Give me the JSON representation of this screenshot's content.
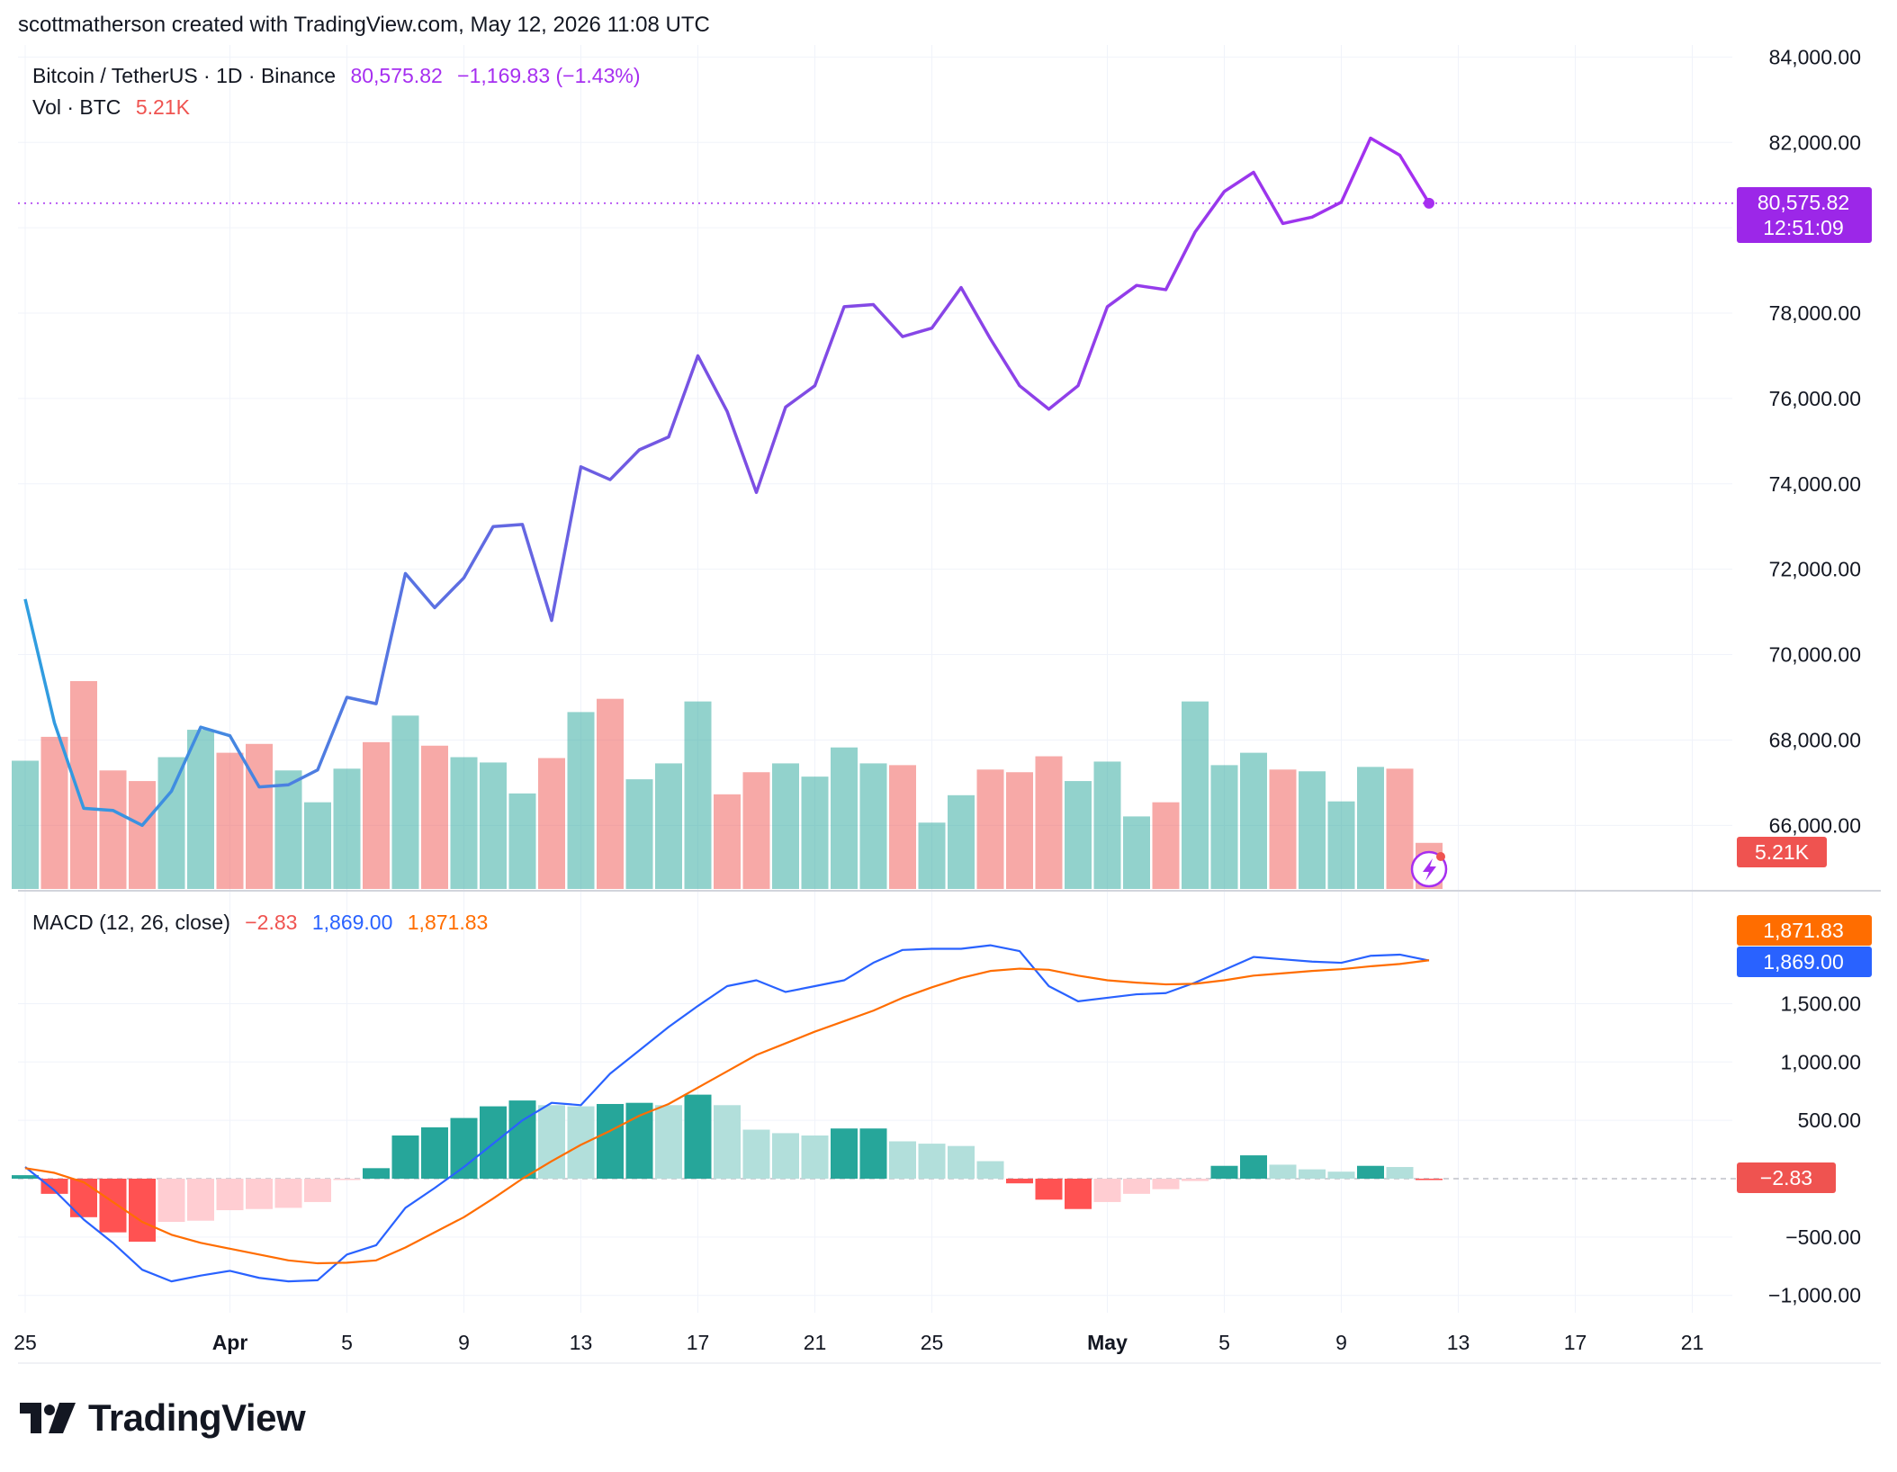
{
  "header": {
    "credit": "scottmatherson created with TradingView.com, May 12, 2026 11:08 UTC"
  },
  "legend": {
    "symbol": "Bitcoin / TetherUS · 1D · Binance",
    "price": "80,575.82",
    "change": "−1,169.83 (−1.43%)",
    "vol_label": "Vol · BTC",
    "vol_value": "5.21K",
    "macd_label": "MACD (12, 26, close)",
    "macd_hist": "−2.83",
    "macd_line": "1,869.00",
    "macd_signal": "1,871.83"
  },
  "badges": {
    "price": "80,575.82",
    "countdown": "12:51:09",
    "volume": "5.21K",
    "signal": "1,871.83",
    "macd": "1,869.00",
    "hist": "−2.83"
  },
  "colors": {
    "up": "#26a69a",
    "down": "#ef5350",
    "price_start": "#2e9fe0",
    "price_end": "#a62ef0",
    "macd": "#2962ff",
    "signal": "#ff6d00",
    "price_badge": "#9c27e8"
  },
  "brand": {
    "name": "TradingView"
  },
  "chart_data": [
    {
      "type": "line",
      "name": "BTCUSDT price",
      "x": [
        "Mar 25",
        "Mar 26",
        "Mar 27",
        "Mar 28",
        "Mar 29",
        "Mar 30",
        "Mar 31",
        "Apr 1",
        "Apr 2",
        "Apr 3",
        "Apr 4",
        "Apr 5",
        "Apr 6",
        "Apr 7",
        "Apr 8",
        "Apr 9",
        "Apr 10",
        "Apr 11",
        "Apr 12",
        "Apr 13",
        "Apr 14",
        "Apr 15",
        "Apr 16",
        "Apr 17",
        "Apr 18",
        "Apr 19",
        "Apr 20",
        "Apr 21",
        "Apr 22",
        "Apr 23",
        "Apr 24",
        "Apr 25",
        "Apr 26",
        "Apr 27",
        "Apr 28",
        "Apr 29",
        "Apr 30",
        "May 1",
        "May 2",
        "May 3",
        "May 4",
        "May 5",
        "May 6",
        "May 7",
        "May 8",
        "May 9",
        "May 10",
        "May 11",
        "May 12"
      ],
      "values": [
        71300,
        68400,
        66400,
        66350,
        66000,
        66800,
        68300,
        68100,
        66900,
        66950,
        67300,
        69000,
        68850,
        71900,
        71100,
        71800,
        73000,
        73050,
        70800,
        74400,
        74100,
        74800,
        75100,
        77000,
        75700,
        73800,
        75800,
        76300,
        78150,
        78200,
        77450,
        77650,
        78600,
        77400,
        76300,
        75750,
        76300,
        78150,
        78650,
        78550,
        79900,
        80850,
        81300,
        80100,
        80250,
        80600,
        82100,
        81700,
        80575.82
      ],
      "ylim": [
        64000,
        84000
      ],
      "yticks": [
        66000,
        68000,
        70000,
        72000,
        74000,
        76000,
        78000,
        80000,
        82000,
        84000
      ],
      "current": 80575.82
    },
    {
      "type": "bar",
      "name": "Vol · BTC",
      "x": [
        "Mar 25",
        "Mar 26",
        "Mar 27",
        "Mar 28",
        "Mar 29",
        "Mar 30",
        "Mar 31",
        "Apr 1",
        "Apr 2",
        "Apr 3",
        "Apr 4",
        "Apr 5",
        "Apr 6",
        "Apr 7",
        "Apr 8",
        "Apr 9",
        "Apr 10",
        "Apr 11",
        "Apr 12",
        "Apr 13",
        "Apr 14",
        "Apr 15",
        "Apr 16",
        "Apr 17",
        "Apr 18",
        "Apr 19",
        "Apr 20",
        "Apr 21",
        "Apr 22",
        "Apr 23",
        "Apr 24",
        "Apr 25",
        "Apr 26",
        "Apr 27",
        "Apr 28",
        "Apr 29",
        "Apr 30",
        "May 1",
        "May 2",
        "May 3",
        "May 4",
        "May 5",
        "May 6",
        "May 7",
        "May 8",
        "May 9",
        "May 10",
        "May 11",
        "May 12"
      ],
      "values": [
        14.5,
        17.2,
        23.5,
        13.4,
        12.2,
        14.9,
        18.0,
        15.4,
        16.4,
        13.4,
        9.8,
        13.6,
        16.6,
        19.6,
        16.2,
        14.9,
        14.3,
        10.8,
        14.8,
        20.0,
        21.5,
        12.4,
        14.2,
        21.2,
        10.7,
        13.2,
        14.2,
        12.7,
        16.0,
        14.2,
        14.0,
        7.5,
        10.6,
        13.5,
        13.2,
        15.0,
        12.2,
        14.4,
        8.2,
        9.8,
        21.2,
        14.0,
        15.4,
        13.5,
        13.3,
        9.9,
        13.8,
        13.6,
        5.21
      ],
      "direction": [
        "up",
        "down",
        "down",
        "down",
        "down",
        "up",
        "up",
        "down",
        "down",
        "up",
        "up",
        "up",
        "down",
        "up",
        "down",
        "up",
        "up",
        "up",
        "down",
        "up",
        "down",
        "up",
        "up",
        "up",
        "down",
        "down",
        "up",
        "up",
        "up",
        "up",
        "down",
        "up",
        "up",
        "down",
        "down",
        "down",
        "up",
        "up",
        "up",
        "down",
        "up",
        "up",
        "up",
        "down",
        "up",
        "up",
        "up",
        "down",
        "down"
      ],
      "current": "5.21K"
    },
    {
      "type": "line",
      "name": "MACD (12, 26, close)",
      "x": [
        "Mar 25",
        "Mar 26",
        "Mar 27",
        "Mar 28",
        "Mar 29",
        "Mar 30",
        "Mar 31",
        "Apr 1",
        "Apr 2",
        "Apr 3",
        "Apr 4",
        "Apr 5",
        "Apr 6",
        "Apr 7",
        "Apr 8",
        "Apr 9",
        "Apr 10",
        "Apr 11",
        "Apr 12",
        "Apr 13",
        "Apr 14",
        "Apr 15",
        "Apr 16",
        "Apr 17",
        "Apr 18",
        "Apr 19",
        "Apr 20",
        "Apr 21",
        "Apr 22",
        "Apr 23",
        "Apr 24",
        "Apr 25",
        "Apr 26",
        "Apr 27",
        "Apr 28",
        "Apr 29",
        "Apr 30",
        "May 1",
        "May 2",
        "May 3",
        "May 4",
        "May 5",
        "May 6",
        "May 7",
        "May 8",
        "May 9",
        "May 10",
        "May 11",
        "May 12"
      ],
      "series": [
        {
          "name": "MACD",
          "values": [
            100,
            -100,
            -350,
            -550,
            -780,
            -880,
            -830,
            -790,
            -850,
            -880,
            -870,
            -650,
            -570,
            -250,
            -80,
            100,
            300,
            500,
            650,
            630,
            900,
            1100,
            1300,
            1480,
            1650,
            1700,
            1600,
            1650,
            1700,
            1850,
            1960,
            1970,
            1970,
            2000,
            1950,
            1650,
            1520,
            1550,
            1580,
            1590,
            1680,
            1790,
            1900,
            1880,
            1860,
            1850,
            1910,
            1920,
            1869
          ],
          "color": "#2962ff"
        },
        {
          "name": "Signal",
          "values": [
            90,
            50,
            -30,
            -200,
            -370,
            -480,
            -550,
            -600,
            -650,
            -700,
            -725,
            -720,
            -700,
            -590,
            -460,
            -330,
            -170,
            0,
            150,
            290,
            410,
            540,
            640,
            780,
            920,
            1060,
            1160,
            1260,
            1350,
            1440,
            1550,
            1640,
            1720,
            1780,
            1800,
            1790,
            1740,
            1700,
            1680,
            1665,
            1670,
            1700,
            1740,
            1760,
            1780,
            1795,
            1820,
            1840,
            1871.83
          ],
          "color": "#ff6d00"
        },
        {
          "name": "Histogram",
          "values": [
            30,
            -130,
            -330,
            -460,
            -540,
            -370,
            -360,
            -270,
            -260,
            -250,
            -200,
            -10,
            90,
            370,
            440,
            520,
            620,
            670,
            630,
            620,
            640,
            650,
            630,
            720,
            630,
            420,
            390,
            370,
            430,
            430,
            320,
            300,
            280,
            150,
            -40,
            -180,
            -260,
            -200,
            -130,
            -90,
            -20,
            110,
            200,
            120,
            80,
            60,
            110,
            100,
            -2.83
          ],
          "style": "histogram"
        }
      ],
      "ylim": [
        -1150,
        2220
      ],
      "yticks": [
        -1000,
        -500,
        0,
        500,
        1000,
        1500
      ],
      "ytick_labels": [
        "−1,000.00",
        "−500.00",
        "",
        "500.00",
        "1,000.00",
        "1,500.00"
      ]
    }
  ],
  "xaxis": {
    "ticks": [
      {
        "label": "25",
        "index": 0,
        "bold": false
      },
      {
        "label": "Apr",
        "index": 7,
        "bold": true
      },
      {
        "label": "5",
        "index": 11,
        "bold": false
      },
      {
        "label": "9",
        "index": 15,
        "bold": false
      },
      {
        "label": "13",
        "index": 19,
        "bold": false
      },
      {
        "label": "17",
        "index": 23,
        "bold": false
      },
      {
        "label": "21",
        "index": 27,
        "bold": false
      },
      {
        "label": "25",
        "index": 31,
        "bold": false
      },
      {
        "label": "May",
        "index": 37,
        "bold": true
      },
      {
        "label": "5",
        "index": 41,
        "bold": false
      },
      {
        "label": "9",
        "index": 45,
        "bold": false
      },
      {
        "label": "13",
        "index": 49,
        "bold": false
      },
      {
        "label": "17",
        "index": 53,
        "bold": false
      },
      {
        "label": "21",
        "index": 57,
        "bold": false
      }
    ]
  }
}
